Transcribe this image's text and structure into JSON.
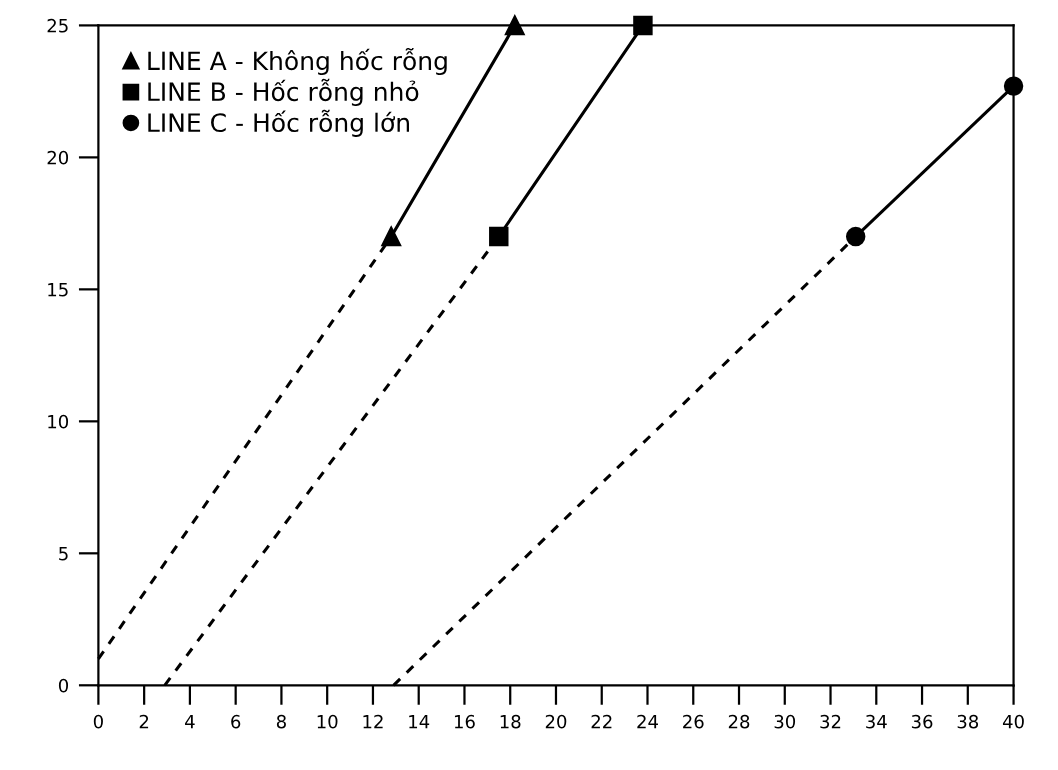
{
  "chart_data": {
    "type": "line",
    "series": [
      {
        "color": "#000000",
        "x": [
          0,
          12.8
        ],
        "values": [
          1,
          17
        ],
        "line_style": "dashed"
      },
      {
        "name": "LINE A - Không hốc rỗng",
        "color": "#000000",
        "x": [
          12.8,
          18.2
        ],
        "values": [
          17,
          25
        ],
        "line_style": "solid",
        "marker": "triangle"
      },
      {
        "color": "#000000",
        "x": [
          2.9,
          17.5
        ],
        "values": [
          0,
          17
        ],
        "line_style": "dashed"
      },
      {
        "name": "LINE B - Hốc rỗng nhỏ",
        "color": "#000000",
        "x": [
          17.5,
          23.8
        ],
        "values": [
          17,
          25
        ],
        "line_style": "solid",
        "marker": "square"
      },
      {
        "color": "#000000",
        "x": [
          12.9,
          33.1
        ],
        "values": [
          0,
          17
        ],
        "line_style": "dashed"
      },
      {
        "name": "LINE C - Hốc rỗng lớn",
        "color": "#000000",
        "x": [
          33.1,
          40
        ],
        "values": [
          17,
          22.7
        ],
        "line_style": "solid",
        "marker": "circle"
      }
    ],
    "xlim": [
      0,
      40
    ],
    "xticks": [
      0,
      2,
      4,
      6,
      8,
      10,
      12,
      14,
      16,
      18,
      20,
      22,
      24,
      26,
      28,
      30,
      32,
      34,
      36,
      38,
      40
    ],
    "ylim": [
      0,
      25
    ],
    "yticks": [
      0,
      5,
      10,
      15,
      20,
      25
    ],
    "grid": false,
    "legend": "top left"
  }
}
